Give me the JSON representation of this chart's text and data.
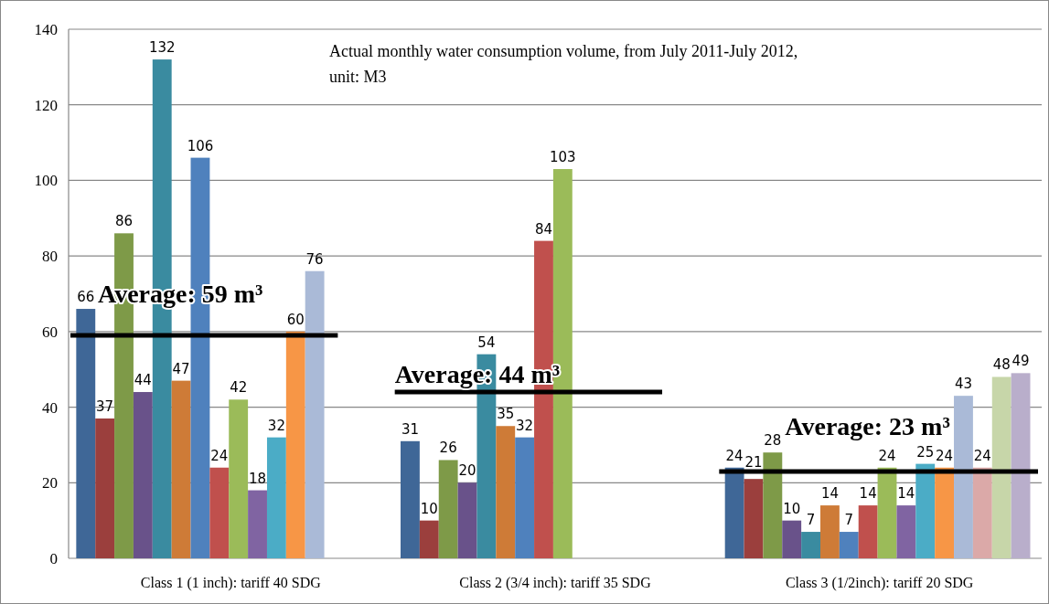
{
  "chart_data": {
    "type": "bar",
    "title": "Actual monthly water consumption volume, from July 2011-July 2012, unit: M3",
    "categories": [
      "Class 1 (1 inch): tariff 40 SDG",
      "Class 2 (3/4 inch): tariff 35 SDG",
      "Class 3  (1/2inch): tariff 20 SDG"
    ],
    "series": [
      {
        "color": "#3f6797",
        "values": [
          66,
          31,
          24
        ]
      },
      {
        "color": "#9b3f3d",
        "values": [
          37,
          10,
          21
        ]
      },
      {
        "color": "#7e9a48",
        "values": [
          86,
          26,
          28
        ]
      },
      {
        "color": "#69528a",
        "values": [
          44,
          20,
          10
        ]
      },
      {
        "color": "#3a8ba0",
        "values": [
          132,
          54,
          7
        ]
      },
      {
        "color": "#ce7b37",
        "values": [
          47,
          35,
          14
        ]
      },
      {
        "color": "#4f81bd",
        "values": [
          106,
          32,
          7
        ]
      },
      {
        "color": "#c0504d",
        "values": [
          24,
          84,
          14
        ]
      },
      {
        "color": "#9bbb59",
        "values": [
          42,
          103,
          24
        ]
      },
      {
        "color": "#8064a2",
        "values": [
          18,
          null,
          14
        ]
      },
      {
        "color": "#4bacc6",
        "values": [
          32,
          null,
          25
        ]
      },
      {
        "color": "#f79646",
        "values": [
          60,
          null,
          24
        ]
      },
      {
        "color": "#aabad7",
        "values": [
          76,
          null,
          43
        ]
      },
      {
        "color": "#dba9a8",
        "values": [
          null,
          null,
          24
        ]
      },
      {
        "color": "#c7d6a9",
        "values": [
          null,
          null,
          48
        ]
      },
      {
        "color": "#b9aecb",
        "values": [
          null,
          null,
          49
        ]
      }
    ],
    "ylim": [
      0,
      140
    ],
    "yticks": [
      0,
      20,
      40,
      60,
      80,
      100,
      120,
      140
    ],
    "grid": "y",
    "data_labels": true,
    "ref_lines": [
      {
        "axis": "y",
        "value": 59,
        "label": "Average: 59 m³",
        "color": "#000000"
      },
      {
        "axis": "y",
        "value": 44,
        "label": "Average: 44 m³",
        "color": "#000000"
      },
      {
        "axis": "y",
        "value": 23,
        "label": "Average: 23 m³",
        "color": "#000000"
      }
    ]
  }
}
